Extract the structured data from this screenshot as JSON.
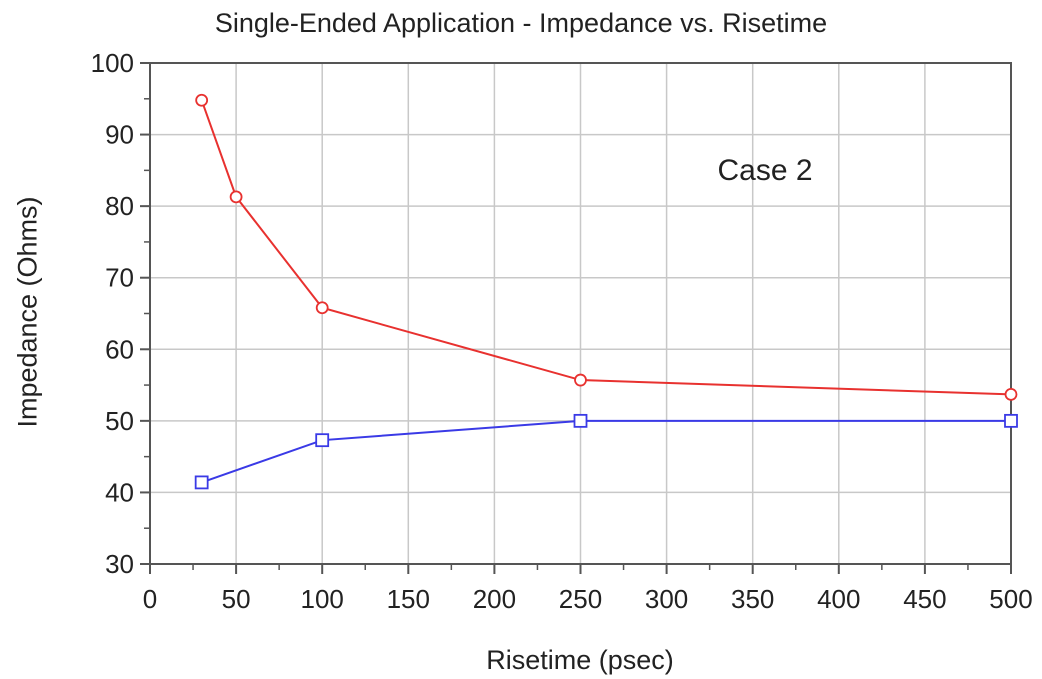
{
  "chart_data": {
    "type": "line",
    "title": "Single-Ended Application - Impedance vs. Risetime",
    "xlabel": "Risetime (psec)",
    "ylabel": "Impedance (Ohms)",
    "xlim": [
      0,
      500
    ],
    "ylim": [
      30,
      100
    ],
    "xticks": [
      0,
      50,
      100,
      150,
      200,
      250,
      300,
      350,
      400,
      450,
      500
    ],
    "yticks": [
      30,
      40,
      50,
      60,
      70,
      80,
      90,
      100
    ],
    "grid": true,
    "annotation": "Case 2",
    "series": [
      {
        "color": "#e8312f",
        "marker": "circle",
        "x": [
          30,
          50,
          100,
          250,
          500
        ],
        "y": [
          94.8,
          81.3,
          65.8,
          55.7,
          53.7
        ]
      },
      {
        "color": "#3a3ae6",
        "marker": "square",
        "x": [
          30,
          100,
          250,
          500
        ],
        "y": [
          41.4,
          47.3,
          50.0,
          50.0
        ]
      }
    ]
  }
}
